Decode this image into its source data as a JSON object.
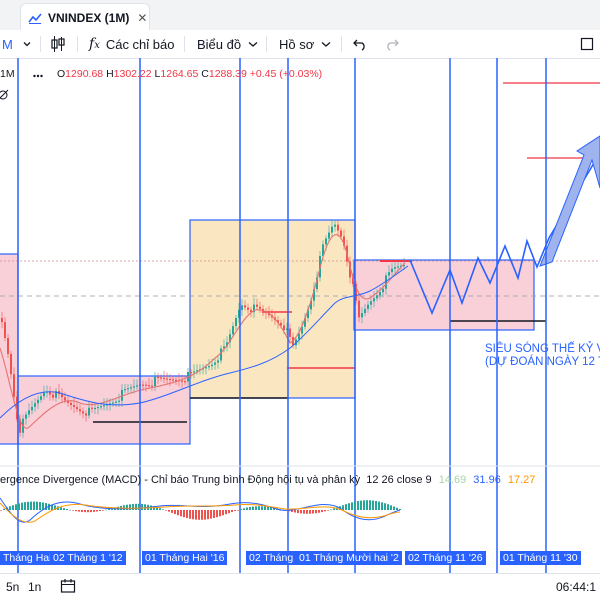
{
  "tab": {
    "title": "VNINDEX (1M)",
    "close": "✕"
  },
  "toolbar": {
    "interval": "M",
    "indicators_label": "Các chỉ báo",
    "chart_type_label": "Biểu đồ",
    "profile_label": "Hồ sơ"
  },
  "legend": {
    "interval": "1M",
    "open_label": "O",
    "open": "1290.68",
    "high_label": "H",
    "high": "1302.22",
    "low_label": "L",
    "low": "1264.65",
    "close_label": "C",
    "close": "1288.39",
    "change": "+0.45 (+0.03%)"
  },
  "annotation": {
    "line1": "SIÊU SÓNG THẾ KỶ V",
    "line2": "(DỰ ĐOÁN NGÀY 12 T"
  },
  "macd": {
    "title": "ergence Divergence (MACD) - Chỉ báo Trung bình Động hội tụ và phân kỳ",
    "params": "12 26 close 9",
    "v1": "14.69",
    "v2": "31.96",
    "v3": "17.27"
  },
  "xaxis": {
    "labels": [
      "Tháng Hai",
      "02 Tháng 1 '12",
      "01 Tháng Hai '16",
      "02 Tháng",
      "01 Tháng Mười hai '2",
      "02 Tháng 11 '26",
      "01 Tháng 11 '30"
    ]
  },
  "bottom": {
    "range1": "5n",
    "range2": "1n",
    "time": "06:44:1"
  },
  "colors": {
    "accent": "#2962ff",
    "up": "#26a69a",
    "down": "#ef5350",
    "box_up": "#fbe6c2",
    "box_down": "#f9d0d8"
  }
}
